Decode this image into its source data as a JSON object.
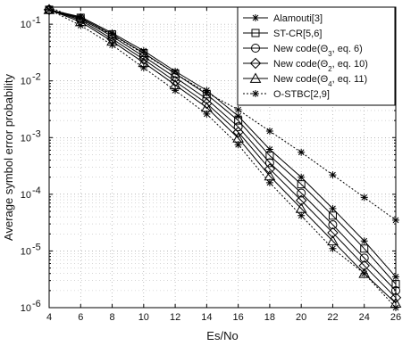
{
  "chart_data": {
    "type": "line",
    "xlabel": "Es/No",
    "ylabel": "Average symbol error probability",
    "xlim": [
      4,
      26
    ],
    "ylim": [
      1e-06,
      0.2
    ],
    "y_scale": "log",
    "grid": true,
    "legend_position": "top-right",
    "x_ticks": [
      "4",
      "6",
      "8",
      "10",
      "12",
      "14",
      "16",
      "18",
      "20",
      "22",
      "24",
      "26"
    ],
    "y_ticks": [
      {
        "value": 0.1,
        "base": "10",
        "exp": "-1"
      },
      {
        "value": 0.01,
        "base": "10",
        "exp": "-2"
      },
      {
        "value": 0.001,
        "base": "10",
        "exp": "-3"
      },
      {
        "value": 0.0001,
        "base": "10",
        "exp": "-4"
      },
      {
        "value": 1e-05,
        "base": "10",
        "exp": "-5"
      },
      {
        "value": 1e-06,
        "base": "10",
        "exp": "-6"
      }
    ],
    "x": [
      4,
      6,
      8,
      10,
      12,
      14,
      16,
      18,
      20,
      22,
      24,
      26
    ],
    "series": [
      {
        "name": "Alamouti[3]",
        "legend_parts": [
          {
            "t": "Alamouti[3]"
          }
        ],
        "marker": "star",
        "dashed": false,
        "values": [
          0.18,
          0.135,
          0.07,
          0.034,
          0.0148,
          0.0068,
          0.0024,
          0.00062,
          0.0002,
          5.6e-05,
          1.5e-05,
          3.5e-06
        ]
      },
      {
        "name": "ST-CR[5,6]",
        "legend_parts": [
          {
            "t": "ST-CR[5,6]"
          }
        ],
        "marker": "square",
        "dashed": false,
        "values": [
          0.18,
          0.13,
          0.066,
          0.031,
          0.0135,
          0.0058,
          0.002,
          0.00048,
          0.00015,
          4.2e-05,
          1.1e-05,
          2.6e-06
        ]
      },
      {
        "name": "New code(Θ3, eq. 6)",
        "legend_parts": [
          {
            "t": "New code(Θ"
          },
          {
            "t": "3",
            "sub": true
          },
          {
            "t": ", eq. 6)"
          }
        ],
        "marker": "circle",
        "dashed": false,
        "values": [
          0.18,
          0.125,
          0.061,
          0.027,
          0.0115,
          0.0048,
          0.00155,
          0.00036,
          0.000105,
          2.9e-05,
          7.5e-06,
          2e-06
        ]
      },
      {
        "name": "New code(Θ2, eq. 10)",
        "legend_parts": [
          {
            "t": "New code(Θ"
          },
          {
            "t": "2",
            "sub": true
          },
          {
            "t": ", eq. 10)"
          }
        ],
        "marker": "diamond",
        "dashed": false,
        "values": [
          0.18,
          0.118,
          0.055,
          0.024,
          0.0098,
          0.004,
          0.00125,
          0.00028,
          7.8e-05,
          2.1e-05,
          5.5e-06,
          1.5e-06
        ]
      },
      {
        "name": "New code(Θ4, eq. 11)",
        "legend_parts": [
          {
            "t": "New code(Θ"
          },
          {
            "t": "4",
            "sub": true
          },
          {
            "t": ", eq. 11)"
          }
        ],
        "marker": "triangle",
        "dashed": false,
        "values": [
          0.18,
          0.11,
          0.05,
          0.021,
          0.0085,
          0.0034,
          0.00098,
          0.00021,
          5.6e-05,
          1.5e-05,
          4e-06,
          1.2e-06
        ]
      },
      {
        "name": "O-STBC[2,9]",
        "legend_parts": [
          {
            "t": "O-STBC[2,9]"
          }
        ],
        "marker": "star",
        "dashed": true,
        "values": [
          0.18,
          0.095,
          0.043,
          0.017,
          0.0068,
          0.0026,
          0.00075,
          0.00016,
          4.2e-05,
          1.1e-05,
          4e-06,
          1e-06
        ]
      }
    ],
    "upper_dotted_curve": {
      "name": "",
      "x": [
        4,
        6,
        8,
        10,
        12,
        14,
        16,
        18,
        20,
        22,
        24,
        26
      ],
      "values": [
        0.2,
        0.12,
        0.065,
        0.03,
        0.0135,
        0.0062,
        0.0031,
        0.0013,
        0.00055,
        0.00022,
        8.8e-05,
        3.5e-05
      ]
    }
  }
}
